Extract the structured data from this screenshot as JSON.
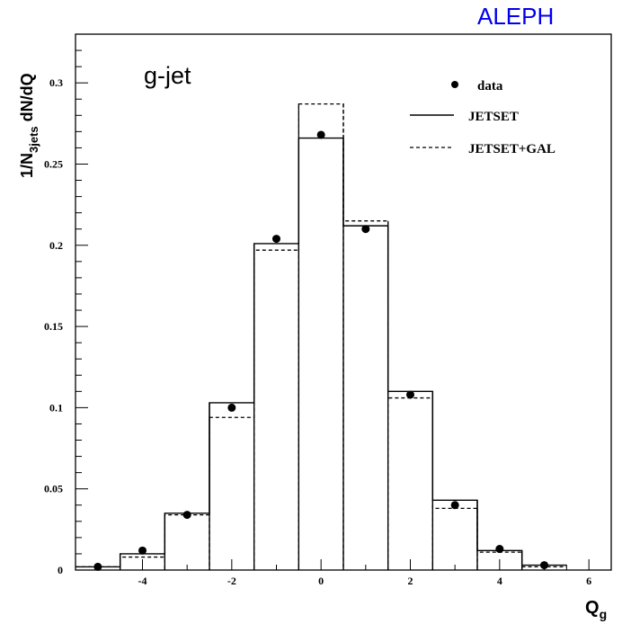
{
  "chart_data": {
    "type": "histogram",
    "experiment_label": "ALEPH",
    "panel_label": "g-jet",
    "xlabel": {
      "main": "Q",
      "sub": "g"
    },
    "ylabel": {
      "prefix": "1/N",
      "sub": "3jets",
      "suffix": " dN/dQ"
    },
    "xlim": [
      -5.5,
      6.5
    ],
    "ylim": [
      0,
      0.33
    ],
    "x_ticks": [
      -4,
      -2,
      0,
      2,
      4,
      6
    ],
    "x_tick_labels": [
      "-4",
      "-2",
      "0",
      "2",
      "4",
      "6"
    ],
    "y_ticks": [
      0,
      0.05,
      0.1,
      0.15,
      0.2,
      0.25,
      0.3
    ],
    "y_tick_labels": [
      "0",
      "0.05",
      "0.1",
      "0.15",
      "0.2",
      "0.25",
      "0.3"
    ],
    "bin_edges": [
      -5.5,
      -4.5,
      -3.5,
      -2.5,
      -1.5,
      -0.5,
      0.5,
      1.5,
      2.5,
      3.5,
      4.5,
      5.5
    ],
    "series": [
      {
        "name": "data",
        "style": "points",
        "x": [
          -5,
          -4,
          -3,
          -2,
          -1,
          0,
          1,
          2,
          3,
          4,
          5
        ],
        "values": [
          0.002,
          0.012,
          0.034,
          0.1,
          0.204,
          0.268,
          0.21,
          0.108,
          0.04,
          0.013,
          0.003
        ]
      },
      {
        "name": "JETSET",
        "style": "solid-histogram",
        "values": [
          0.002,
          0.01,
          0.035,
          0.103,
          0.201,
          0.266,
          0.212,
          0.11,
          0.043,
          0.012,
          0.003
        ]
      },
      {
        "name": "JETSET+GAL",
        "style": "dashed-histogram",
        "values": [
          0.002,
          0.008,
          0.034,
          0.094,
          0.197,
          0.287,
          0.215,
          0.106,
          0.038,
          0.011,
          0.002
        ]
      }
    ],
    "legend": [
      "data",
      "JETSET",
      "JETSET+GAL"
    ],
    "legend_position": "top-right",
    "colors": {
      "experiment_label": "#0000ee",
      "lines": "#000000"
    }
  }
}
